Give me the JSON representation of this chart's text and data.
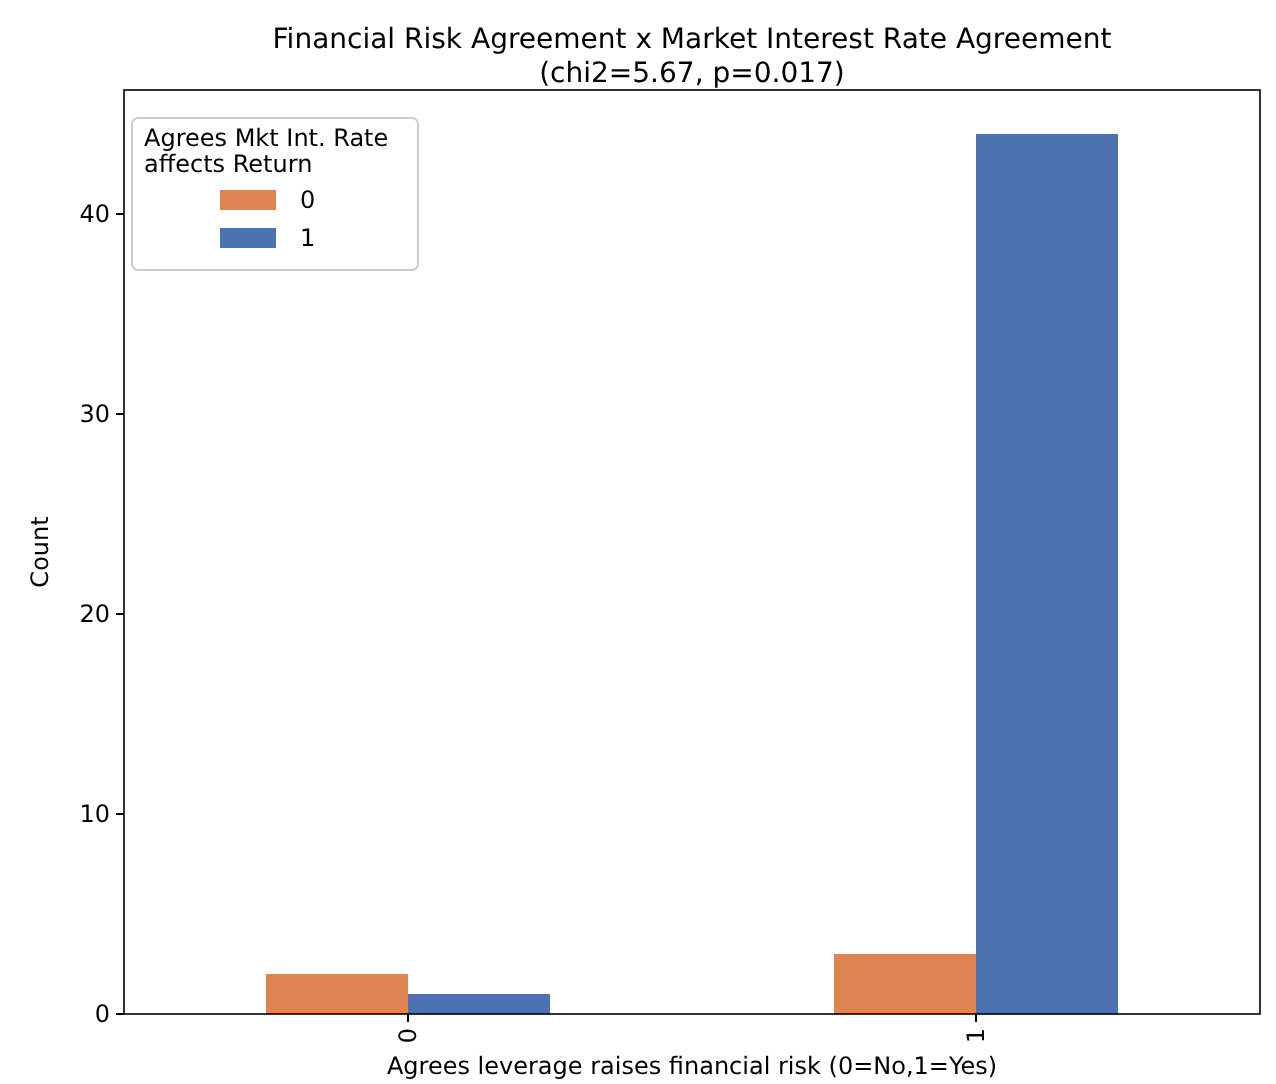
{
  "chart_data": {
    "type": "bar",
    "title": "Financial Risk Agreement x Market Interest Rate Agreement",
    "subtitle": "(chi2=5.67, p=0.017)",
    "xlabel": "Agrees leverage raises financial risk (0=No,1=Yes)",
    "ylabel": "Count",
    "legend_title": "Agrees Mkt Int. Rate\naffects Return",
    "categories": [
      "0",
      "1"
    ],
    "series": [
      {
        "name": "0",
        "color": "#dd8452",
        "values": [
          2,
          3
        ]
      },
      {
        "name": "1",
        "color": "#4c72b0",
        "values": [
          1,
          44
        ]
      }
    ],
    "ylim": [
      0,
      46.2
    ],
    "yticks": [
      0,
      10,
      20,
      30,
      40
    ],
    "legend": "top left",
    "grid": false
  }
}
